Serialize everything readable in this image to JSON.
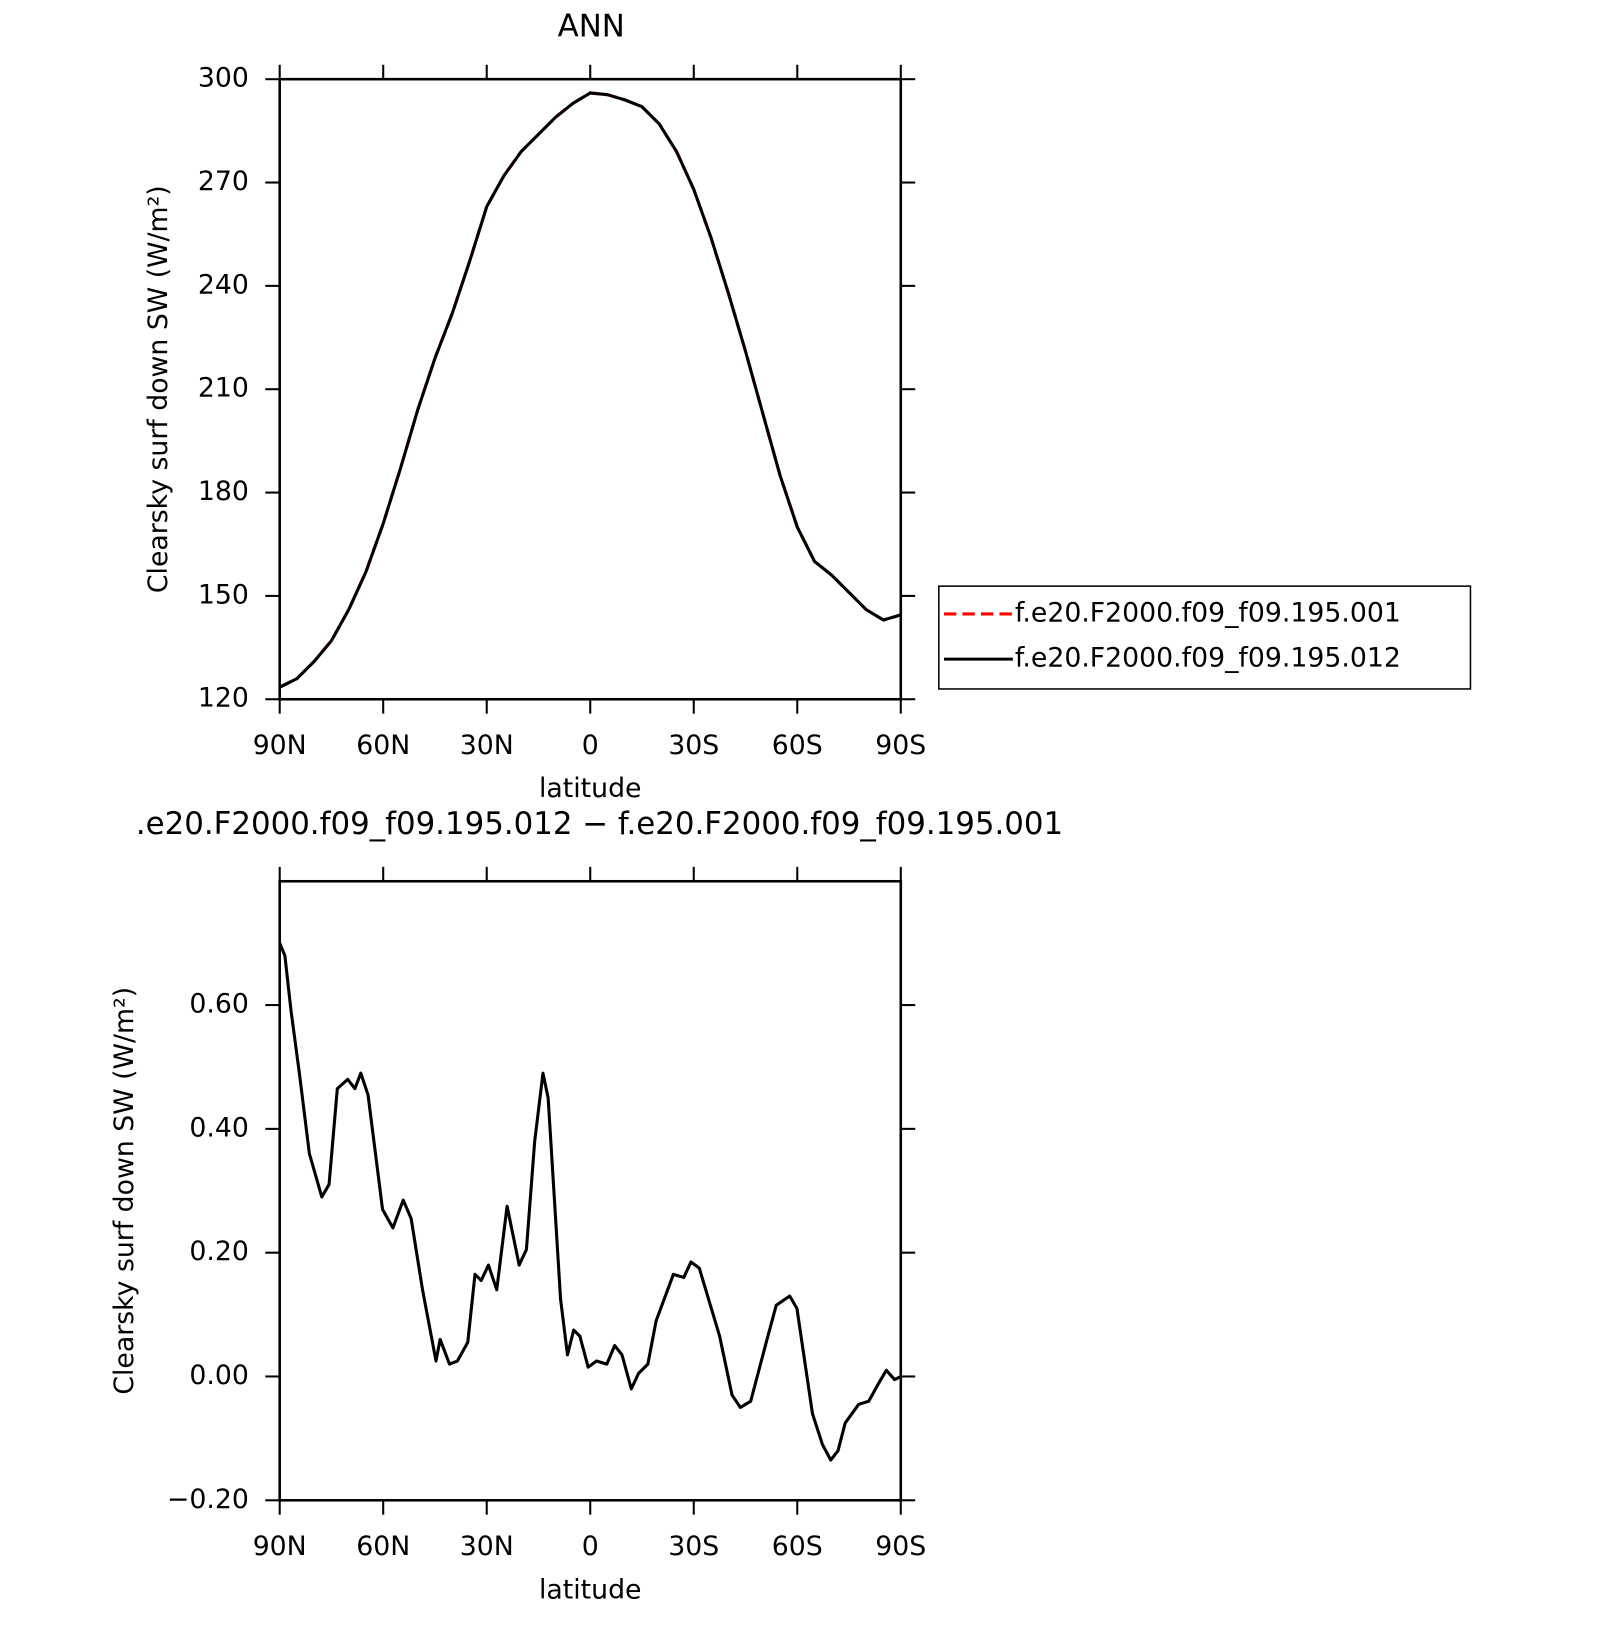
{
  "chart_data": [
    {
      "type": "line",
      "title": "ANN",
      "xlabel": "latitude",
      "ylabel": "Clearsky surf down SW (W/m²)",
      "x": [
        90,
        85,
        80,
        75,
        70,
        65,
        60,
        55,
        50,
        45,
        40,
        35,
        30,
        25,
        20,
        15,
        10,
        5,
        0,
        -5,
        -10,
        -15,
        -20,
        -25,
        -30,
        -35,
        -40,
        -45,
        -50,
        -55,
        -60,
        -65,
        -70,
        -75,
        -80,
        -85,
        -90
      ],
      "series": [
        {
          "name": "f.e20.F2000.f09_f09.195.001",
          "color": "#ff0000",
          "dashed": true,
          "values": [
            123.5,
            126,
            131,
            137,
            146,
            157,
            171,
            187,
            204,
            219,
            232,
            247,
            263,
            272,
            279,
            284,
            289,
            293,
            296,
            295.5,
            294,
            292,
            287,
            279,
            268,
            254,
            238,
            221,
            203,
            185,
            170,
            160,
            156,
            151,
            146,
            143,
            144.5
          ]
        },
        {
          "name": "f.e20.F2000.f09_f09.195.012",
          "color": "#000000",
          "dashed": false,
          "values": [
            123.5,
            126,
            131,
            137,
            146,
            157,
            171,
            187,
            204,
            219,
            232,
            247,
            263,
            272,
            279,
            284,
            289,
            293,
            296,
            295.5,
            294,
            292,
            287,
            279,
            268,
            254,
            238,
            221,
            203,
            185,
            170,
            160,
            156,
            151,
            146,
            143,
            144.5
          ]
        }
      ],
      "xlim": [
        90,
        -90
      ],
      "xticks": [
        {
          "value": 90,
          "label": "90N"
        },
        {
          "value": 60,
          "label": "60N"
        },
        {
          "value": 30,
          "label": "30N"
        },
        0,
        {
          "value": -30,
          "label": "30S"
        },
        {
          "value": -60,
          "label": "60S"
        },
        {
          "value": -90,
          "label": "90S"
        }
      ],
      "ylim": [
        120,
        300
      ],
      "yticks": [
        120,
        150,
        180,
        210,
        240,
        270,
        300
      ],
      "legend": "right"
    },
    {
      "type": "line",
      "title": ".e20.F2000.f09_f09.195.012 − f.e20.F2000.f09_f09.195.001",
      "xlabel": "latitude",
      "ylabel": "Clearsky surf down SW (W/m²)",
      "x": [
        90,
        88.5,
        86.7,
        84.3,
        81.4,
        77.8,
        75.7,
        73.3,
        70.3,
        68.2,
        66.5,
        64.4,
        60.2,
        57.2,
        54.2,
        51.9,
        48.6,
        44.7,
        43.5,
        40.8,
        38.5,
        35.5,
        33.4,
        31.6,
        29.5,
        27.1,
        24.1,
        20.6,
        18.5,
        16.1,
        13.7,
        12.2,
        8.6,
        6.6,
        4.8,
        3.0,
        0.6,
        -1.8,
        -4.8,
        -7.1,
        -9.2,
        -11.9,
        -14.0,
        -16.7,
        -19.1,
        -24.1,
        -27.1,
        -29.2,
        -31.6,
        -37.5,
        -41.1,
        -43.5,
        -46.5,
        -51.0,
        -53.9,
        -57.8,
        -59.9,
        -64.4,
        -67.3,
        -69.7,
        -71.8,
        -73.9,
        -77.8,
        -80.7,
        -83.7,
        -85.8,
        -88.2,
        -90
      ],
      "series": [
        {
          "color": "#000000",
          "dashed": false,
          "values": [
            0.7,
            0.68,
            0.59,
            0.49,
            0.36,
            0.29,
            0.31,
            0.465,
            0.48,
            0.465,
            0.49,
            0.455,
            0.27,
            0.24,
            0.285,
            0.255,
            0.14,
            0.025,
            0.06,
            0.02,
            0.025,
            0.055,
            0.165,
            0.155,
            0.18,
            0.14,
            0.275,
            0.18,
            0.205,
            0.38,
            0.49,
            0.45,
            0.125,
            0.035,
            0.075,
            0.065,
            0.015,
            0.025,
            0.02,
            0.05,
            0.035,
            -0.02,
            0.005,
            0.02,
            0.09,
            0.165,
            0.16,
            0.185,
            0.175,
            0.065,
            -0.03,
            -0.05,
            -0.04,
            0.055,
            0.115,
            0.13,
            0.11,
            -0.06,
            -0.11,
            -0.135,
            -0.12,
            -0.075,
            -0.045,
            -0.04,
            -0.01,
            0.01,
            -0.005,
            0.0
          ]
        }
      ],
      "xlim": [
        90,
        -90
      ],
      "xticks": [
        {
          "value": 90,
          "label": "90N"
        },
        {
          "value": 60,
          "label": "60N"
        },
        {
          "value": 30,
          "label": "30N"
        },
        0,
        {
          "value": -30,
          "label": "30S"
        },
        {
          "value": -60,
          "label": "60S"
        },
        {
          "value": -90,
          "label": "90S"
        }
      ],
      "ylim": [
        -0.2,
        0.8
      ],
      "yticks": [
        {
          "value": -0.2,
          "label": "−0.20"
        },
        {
          "value": 0,
          "label": "0.00"
        },
        {
          "value": 0.2,
          "label": "0.20"
        },
        {
          "value": 0.4,
          "label": "0.40"
        },
        {
          "value": 0.6,
          "label": "0.60"
        }
      ]
    }
  ]
}
